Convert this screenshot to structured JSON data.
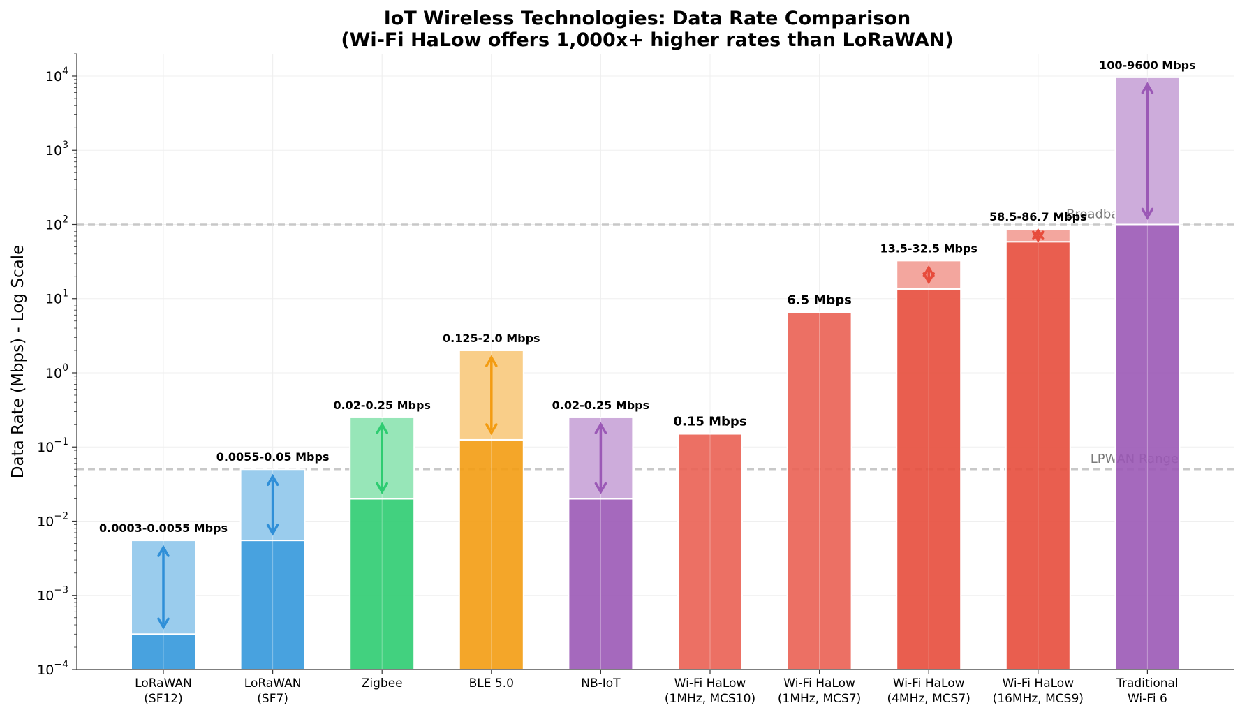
{
  "chart_data": {
    "type": "bar",
    "title": "IoT Wireless Technologies: Data Rate Comparison",
    "subtitle": "(Wi-Fi HaLow offers 1,000x+ higher rates than LoRaWAN)",
    "xlabel": "",
    "ylabel": "Data Rate (Mbps) - Log Scale",
    "yscale": "log",
    "ylim": [
      0.0001,
      20000
    ],
    "yticks": [
      {
        "value": 0.0001,
        "base": "10",
        "exp": "−4"
      },
      {
        "value": 0.001,
        "base": "10",
        "exp": "−3"
      },
      {
        "value": 0.01,
        "base": "10",
        "exp": "−2"
      },
      {
        "value": 0.1,
        "base": "10",
        "exp": "−1"
      },
      {
        "value": 1,
        "base": "10",
        "exp": "0"
      },
      {
        "value": 10,
        "base": "10",
        "exp": "1"
      },
      {
        "value": 100,
        "base": "10",
        "exp": "2"
      },
      {
        "value": 1000,
        "base": "10",
        "exp": "3"
      },
      {
        "value": 10000,
        "base": "10",
        "exp": "4"
      }
    ],
    "grid": true,
    "bars": [
      {
        "category": [
          "LoRaWAN",
          "(SF12)"
        ],
        "min": 0.0003,
        "max": 0.0055,
        "label": "0.0003-0.0055 Mbps",
        "color": "#3498db",
        "arrow": true
      },
      {
        "category": [
          "LoRaWAN",
          "(SF7)"
        ],
        "min": 0.0055,
        "max": 0.05,
        "label": "0.0055-0.05 Mbps",
        "color": "#3498db",
        "arrow": true
      },
      {
        "category": [
          "Zigbee"
        ],
        "min": 0.02,
        "max": 0.25,
        "label": "0.02-0.25 Mbps",
        "color": "#2ecc71",
        "arrow": true
      },
      {
        "category": [
          "BLE 5.0"
        ],
        "min": 0.125,
        "max": 2.0,
        "label": "0.125-2.0 Mbps",
        "color": "#f39c12",
        "arrow": true
      },
      {
        "category": [
          "NB-IoT"
        ],
        "min": 0.02,
        "max": 0.25,
        "label": "0.02-0.25 Mbps",
        "color": "#9b59b6",
        "arrow": true
      },
      {
        "category": [
          "Wi-Fi HaLow",
          "(1MHz, MCS10)"
        ],
        "min": 0.15,
        "max": 0.15,
        "label": "0.15 Mbps",
        "color": "#e74c3c",
        "arrow": false
      },
      {
        "category": [
          "Wi-Fi HaLow",
          "(1MHz, MCS7)"
        ],
        "min": 6.5,
        "max": 6.5,
        "label": "6.5 Mbps",
        "color": "#e74c3c",
        "arrow": false
      },
      {
        "category": [
          "Wi-Fi HaLow",
          "(4MHz, MCS7)"
        ],
        "min": 13.5,
        "max": 32.5,
        "label": "13.5-32.5 Mbps",
        "color": "#e74c3c",
        "arrow": true
      },
      {
        "category": [
          "Wi-Fi HaLow",
          "(16MHz, MCS9)"
        ],
        "min": 58.5,
        "max": 86.7,
        "label": "58.5-86.7 Mbps",
        "color": "#e74c3c",
        "arrow": true
      },
      {
        "category": [
          "Traditional",
          "Wi-Fi 6"
        ],
        "min": 100,
        "max": 9600,
        "label": "100-9600 Mbps",
        "color": "#9b59b6",
        "arrow": true
      }
    ],
    "reference_lines": [
      {
        "value": 0.05,
        "label": "LPWAN Range"
      },
      {
        "value": 100,
        "label": "Broadband Range"
      }
    ]
  }
}
